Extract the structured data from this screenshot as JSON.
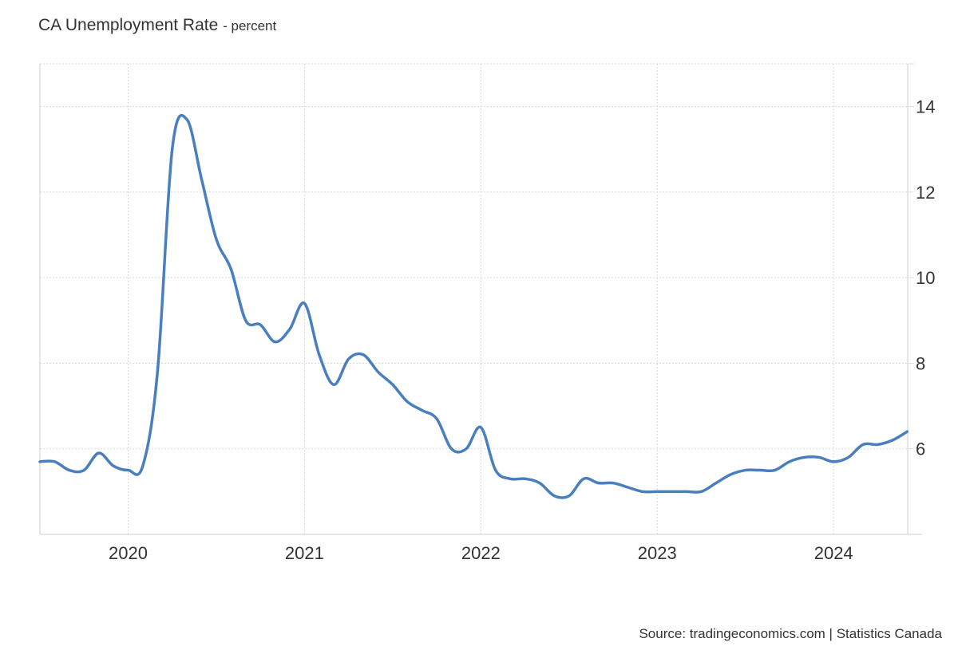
{
  "chart_data": {
    "type": "line",
    "title": "CA Unemployment Rate",
    "unit_label": "- percent",
    "source": "Source: tradingeconomics.com | Statistics Canada",
    "xlabel": "",
    "ylabel": "",
    "x_start": "2019-07",
    "frequency": "monthly",
    "xlim": [
      2019.5,
      2024.42
    ],
    "ylim": [
      4,
      15
    ],
    "x_ticks": [
      {
        "value": 2020,
        "label": "2020"
      },
      {
        "value": 2021,
        "label": "2021"
      },
      {
        "value": 2022,
        "label": "2022"
      },
      {
        "value": 2023,
        "label": "2023"
      },
      {
        "value": 2024,
        "label": "2024"
      }
    ],
    "y_ticks": [
      {
        "value": 6,
        "label": "6"
      },
      {
        "value": 8,
        "label": "8"
      },
      {
        "value": 10,
        "label": "10"
      },
      {
        "value": 12,
        "label": "12"
      },
      {
        "value": 14,
        "label": "14"
      }
    ],
    "grid": true,
    "legend": "none",
    "series": [
      {
        "name": "CA Unemployment Rate",
        "color": "#4a7fbf",
        "values": [
          5.7,
          5.7,
          5.5,
          5.5,
          5.9,
          5.6,
          5.5,
          5.6,
          7.8,
          13.0,
          13.7,
          12.3,
          10.9,
          10.2,
          9.0,
          8.9,
          8.5,
          8.8,
          9.4,
          8.2,
          7.5,
          8.1,
          8.2,
          7.8,
          7.5,
          7.1,
          6.9,
          6.7,
          6.0,
          6.0,
          6.5,
          5.5,
          5.3,
          5.3,
          5.2,
          4.9,
          4.9,
          5.3,
          5.2,
          5.2,
          5.1,
          5.0,
          5.0,
          5.0,
          5.0,
          5.0,
          5.2,
          5.4,
          5.5,
          5.5,
          5.5,
          5.7,
          5.8,
          5.8,
          5.7,
          5.8,
          6.1,
          6.1,
          6.2,
          6.4
        ]
      }
    ]
  }
}
